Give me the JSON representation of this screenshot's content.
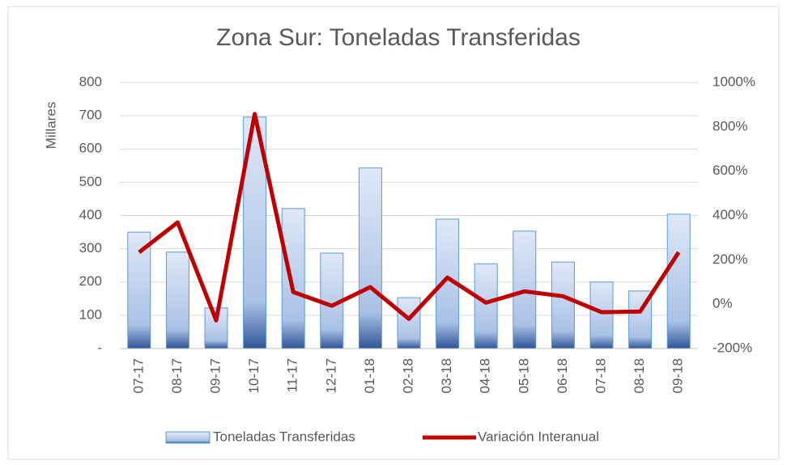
{
  "chart_data": {
    "type": "bar-line",
    "title": "Zona Sur: Toneladas Transferidas",
    "y_label": "Millares",
    "categories": [
      "07-17",
      "08-17",
      "09-17",
      "10-17",
      "11-17",
      "12-17",
      "01-18",
      "02-18",
      "03-18",
      "04-18",
      "05-18",
      "06-18",
      "07-18",
      "08-18",
      "09-18"
    ],
    "series": [
      {
        "name": "Toneladas Transferidas",
        "type": "bar",
        "color": "#5b9bd5",
        "values": [
          350,
          290,
          122,
          696,
          421,
          287,
          543,
          153,
          389,
          255,
          353,
          260,
          200,
          173,
          404
        ]
      },
      {
        "name": "Variación Interanual",
        "type": "line",
        "axis": "y2",
        "color": "#c00000",
        "values": [
          234,
          369,
          -73,
          858,
          55,
          -7,
          77,
          -66,
          120,
          7,
          58,
          36,
          -36,
          -33,
          234
        ]
      }
    ],
    "ylim": [
      0,
      800
    ],
    "yticks": [
      {
        "value": 0,
        "label": "-"
      },
      100,
      200,
      300,
      400,
      500,
      600,
      700,
      800
    ],
    "y2lim": [
      -200,
      1000
    ],
    "y2ticks": [
      {
        "value": -200,
        "label": "-200%"
      },
      {
        "value": 0,
        "label": "0%"
      },
      {
        "value": 200,
        "label": "200%"
      },
      {
        "value": 400,
        "label": "400%"
      },
      {
        "value": 600,
        "label": "600%"
      },
      {
        "value": 800,
        "label": "800%"
      },
      {
        "value": 1000,
        "label": "1000%"
      }
    ],
    "grid": true,
    "legend": "bottom"
  }
}
